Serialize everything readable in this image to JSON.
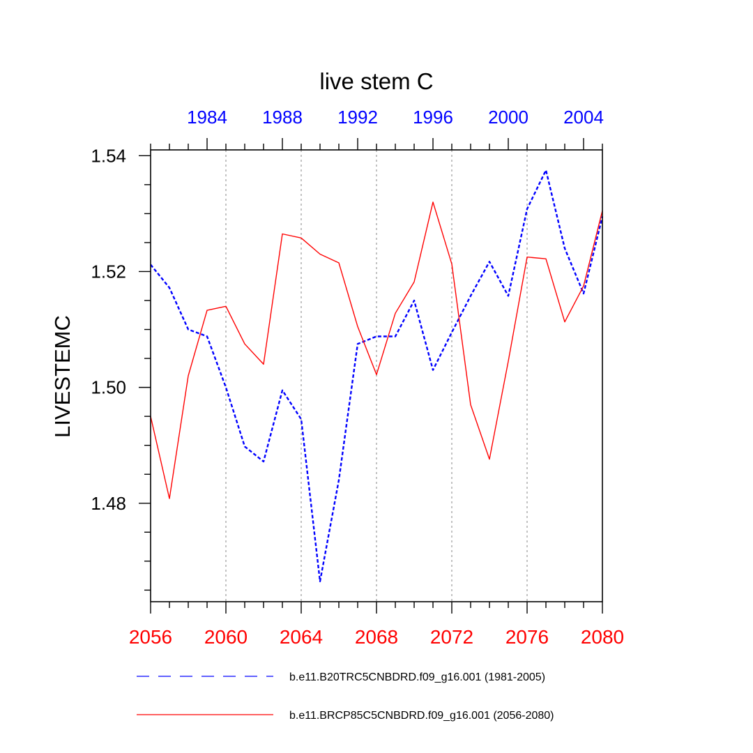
{
  "chart_data": {
    "type": "line",
    "title": "live stem C",
    "ylabel": "LIVESTEMC",
    "xlabel": "",
    "ylim": [
      1.463,
      1.541
    ],
    "y_ticks": [
      1.48,
      1.5,
      1.52,
      1.54
    ],
    "y_tick_labels": [
      "1.48",
      "1.50",
      "1.52",
      "1.54"
    ],
    "y_minor_step": 0.005,
    "bottom_axis": {
      "range": [
        2056,
        2080
      ],
      "ticks": [
        2056,
        2060,
        2064,
        2068,
        2072,
        2076,
        2080
      ],
      "tick_labels": [
        "2056",
        "2060",
        "2064",
        "2068",
        "2072",
        "2076",
        "2080"
      ],
      "color": "#ff0000"
    },
    "top_axis": {
      "range": [
        1981,
        2005
      ],
      "ticks": [
        1984,
        1988,
        1992,
        1996,
        2000,
        2004
      ],
      "tick_labels": [
        "1984",
        "1988",
        "1992",
        "1996",
        "2000",
        "2004"
      ],
      "color": "#0000ff"
    },
    "vertical_gridlines": [
      2060,
      2064,
      2068,
      2072,
      2076
    ],
    "series": [
      {
        "name": "b.e11.B20TRC5CNBDRD.f09_g16.001 (1981-2005)",
        "axis": "top",
        "color": "#0000ff",
        "style": "dashed",
        "x": [
          1981,
          1982,
          1983,
          1984,
          1985,
          1986,
          1987,
          1988,
          1989,
          1990,
          1991,
          1992,
          1993,
          1994,
          1995,
          1996,
          1997,
          1998,
          1999,
          2000,
          2001,
          2002,
          2003,
          2004,
          2005
        ],
        "values": [
          1.5212,
          1.5172,
          1.51,
          1.5088,
          1.5,
          1.4898,
          1.4872,
          1.4995,
          1.4945,
          1.4665,
          1.484,
          1.5075,
          1.5088,
          1.5088,
          1.515,
          1.503,
          1.5095,
          1.5158,
          1.5217,
          1.5158,
          1.5308,
          1.5375,
          1.524,
          1.5162,
          1.5295
        ]
      },
      {
        "name": "b.e11.BRCP85C5CNBDRD.f09_g16.001 (2056-2080)",
        "axis": "bottom",
        "color": "#ff0000",
        "style": "solid",
        "x": [
          2056,
          2057,
          2058,
          2059,
          2060,
          2061,
          2062,
          2063,
          2064,
          2065,
          2066,
          2067,
          2068,
          2069,
          2070,
          2071,
          2072,
          2073,
          2074,
          2075,
          2076,
          2077,
          2078,
          2079,
          2080
        ],
        "values": [
          1.495,
          1.4808,
          1.502,
          1.5133,
          1.514,
          1.5075,
          1.504,
          1.5265,
          1.5258,
          1.523,
          1.5215,
          1.5105,
          1.5022,
          1.5128,
          1.5182,
          1.532,
          1.5213,
          1.497,
          1.4876,
          1.5045,
          1.5225,
          1.5222,
          1.5113,
          1.5175,
          1.5305
        ]
      }
    ],
    "legend": {
      "position": "bottom",
      "entries": [
        "b.e11.B20TRC5CNBDRD.f09_g16.001 (1981-2005)",
        "b.e11.BRCP85C5CNBDRD.f09_g16.001 (2056-2080)"
      ]
    }
  }
}
